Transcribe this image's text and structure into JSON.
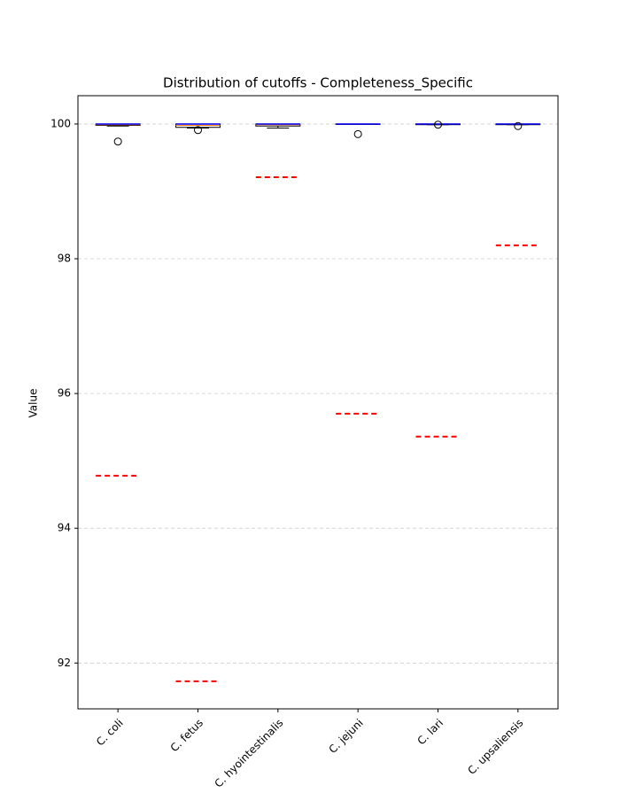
{
  "chart_data": {
    "type": "box",
    "title": "Distribution of cutoffs - Completeness_Specific",
    "y_label": "Value",
    "categories": [
      "C. coli",
      "C. fetus",
      "C. hyointestinalis",
      "C. jejuni",
      "C. lari",
      "C. upsaliensis"
    ],
    "series": [
      {
        "color": "black",
        "median_color": "#ff7f0e",
        "cap_color": "blue",
        "cutoff_color": "red",
        "q1": [
          99.98,
          99.95,
          99.97,
          100,
          99.99,
          99.99
        ],
        "median": [
          99.99,
          99.98,
          99.99,
          100,
          100,
          100
        ],
        "q3": [
          100,
          100,
          100,
          100,
          100,
          100
        ],
        "whislo": [
          99.97,
          99.94,
          99.94,
          100,
          99.99,
          99.99
        ],
        "whishi": [
          100,
          100,
          100,
          100,
          100,
          100
        ],
        "fliers": [
          [
            99.74
          ],
          [
            99.91
          ],
          [],
          [
            99.85
          ],
          [
            99.99
          ],
          [
            99.97
          ]
        ],
        "cutoff": [
          94.78,
          91.73,
          99.21,
          95.7,
          95.36,
          98.2
        ]
      }
    ],
    "ylim": [
      91.32,
      100.42
    ],
    "yticks": [
      92,
      94,
      96,
      98,
      100
    ],
    "grid": true
  }
}
